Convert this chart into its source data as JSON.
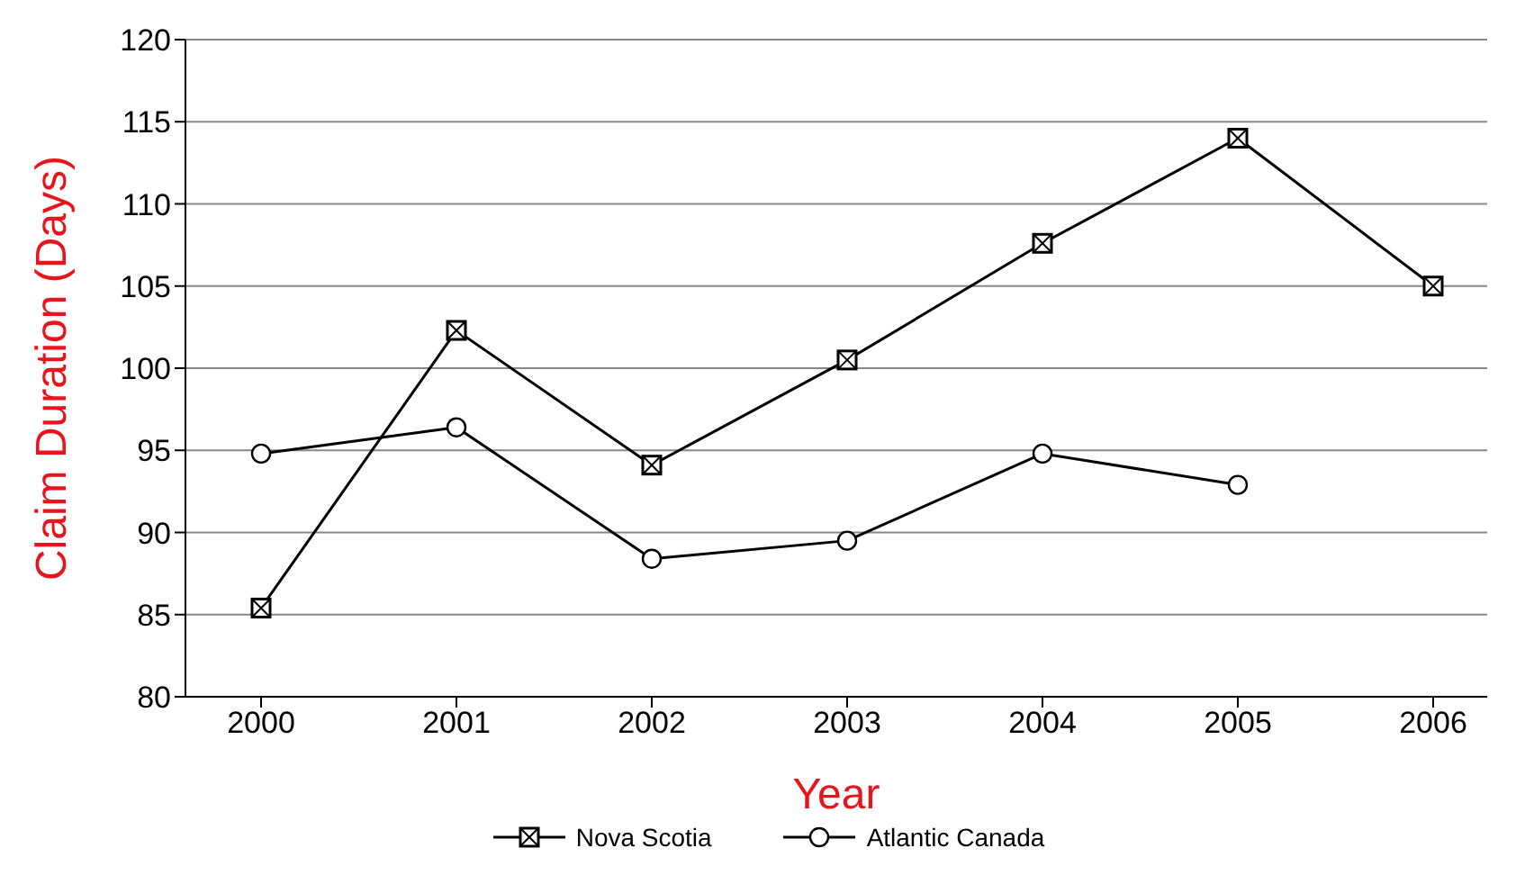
{
  "chart_data": {
    "type": "line",
    "xlabel": "Year",
    "ylabel": "Claim Duration (Days)",
    "categories": [
      "2000",
      "2001",
      "2002",
      "2003",
      "2004",
      "2005",
      "2006"
    ],
    "series": [
      {
        "name": "Nova Scotia",
        "color": "#000000",
        "marker": "square",
        "values": [
          85.4,
          102.3,
          94.1,
          100.5,
          107.6,
          114,
          105
        ]
      },
      {
        "name": "Atlantic Canada",
        "color": "#000000",
        "marker": "circle",
        "values": [
          94.8,
          96.4,
          88.4,
          89.5,
          94.8,
          92.9,
          null
        ]
      }
    ],
    "ylim": [
      80,
      120
    ],
    "yticks": [
      80,
      85,
      90,
      95,
      100,
      105,
      110,
      115,
      120
    ],
    "grid": "y",
    "legend": "bottom",
    "line_style": "solid"
  }
}
